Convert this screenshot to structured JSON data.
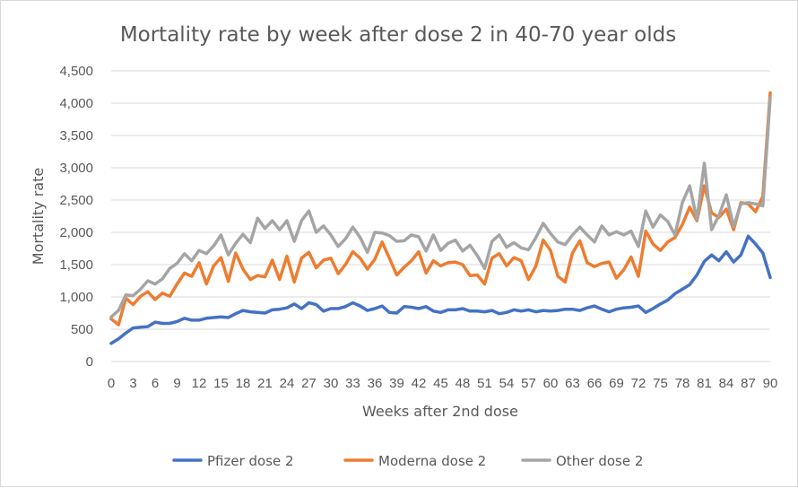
{
  "chart_data": {
    "type": "line",
    "title": "Mortality rate by week after dose 2 in 40-70 year olds",
    "xlabel": "Weeks after 2nd dose",
    "ylabel": "Mortality rate",
    "x": [
      0,
      1,
      2,
      3,
      4,
      5,
      6,
      7,
      8,
      9,
      10,
      11,
      12,
      13,
      14,
      15,
      16,
      17,
      18,
      19,
      20,
      21,
      22,
      23,
      24,
      25,
      26,
      27,
      28,
      29,
      30,
      31,
      32,
      33,
      34,
      35,
      36,
      37,
      38,
      39,
      40,
      41,
      42,
      43,
      44,
      45,
      46,
      47,
      48,
      49,
      50,
      51,
      52,
      53,
      54,
      55,
      56,
      57,
      58,
      59,
      60,
      61,
      62,
      63,
      64,
      65,
      66,
      67,
      68,
      69,
      70,
      71,
      72,
      73,
      74,
      75,
      76,
      77,
      78,
      79,
      80,
      81,
      82,
      83,
      84,
      85,
      86,
      87,
      88,
      89,
      90
    ],
    "xlim": [
      0,
      90
    ],
    "ylim": [
      0,
      4500
    ],
    "x_ticks": [
      "0",
      "3",
      "6",
      "9",
      "12",
      "15",
      "18",
      "21",
      "24",
      "27",
      "30",
      "33",
      "36",
      "39",
      "42",
      "45",
      "48",
      "51",
      "54",
      "57",
      "60",
      "63",
      "66",
      "69",
      "72",
      "75",
      "78",
      "81",
      "84",
      "87",
      "90"
    ],
    "y_ticks": [
      "0",
      "500",
      "1,000",
      "1,500",
      "2,000",
      "2,500",
      "3,000",
      "3,500",
      "4,000",
      "4,500"
    ],
    "grid": "horizontal",
    "legend_position": "bottom",
    "series": [
      {
        "name": "Pfizer dose 2",
        "color": "#4472c4",
        "values": [
          280,
          350,
          440,
          520,
          530,
          540,
          610,
          590,
          590,
          620,
          670,
          640,
          640,
          670,
          680,
          690,
          680,
          740,
          790,
          770,
          760,
          750,
          800,
          810,
          830,
          890,
          820,
          910,
          880,
          780,
          820,
          820,
          850,
          910,
          860,
          790,
          820,
          860,
          760,
          750,
          850,
          840,
          820,
          850,
          780,
          760,
          800,
          800,
          820,
          780,
          780,
          770,
          790,
          740,
          760,
          800,
          780,
          800,
          770,
          790,
          780,
          790,
          810,
          810,
          790,
          830,
          860,
          810,
          770,
          810,
          830,
          840,
          860,
          760,
          820,
          890,
          950,
          1050,
          1120,
          1190,
          1340,
          1550,
          1650,
          1560,
          1700,
          1540,
          1650,
          1940,
          1820,
          1680,
          1300
        ]
      },
      {
        "name": "Moderna dose 2",
        "color": "#ed7d31",
        "values": [
          660,
          570,
          980,
          880,
          1010,
          1080,
          960,
          1060,
          1010,
          1200,
          1370,
          1320,
          1530,
          1200,
          1480,
          1610,
          1240,
          1680,
          1430,
          1270,
          1330,
          1310,
          1570,
          1270,
          1630,
          1230,
          1600,
          1690,
          1450,
          1570,
          1600,
          1360,
          1500,
          1700,
          1600,
          1430,
          1580,
          1850,
          1600,
          1340,
          1460,
          1560,
          1700,
          1370,
          1560,
          1480,
          1530,
          1540,
          1500,
          1330,
          1340,
          1200,
          1600,
          1670,
          1480,
          1610,
          1560,
          1270,
          1480,
          1880,
          1720,
          1320,
          1230,
          1680,
          1870,
          1530,
          1470,
          1520,
          1540,
          1290,
          1420,
          1620,
          1320,
          2020,
          1820,
          1720,
          1850,
          1920,
          2120,
          2390,
          2180,
          2720,
          2300,
          2230,
          2360,
          2040,
          2460,
          2440,
          2320,
          2560,
          4160
        ]
      },
      {
        "name": "Other dose 2",
        "color": "#a5a5a5",
        "values": [
          690,
          790,
          1030,
          1020,
          1120,
          1250,
          1200,
          1280,
          1440,
          1520,
          1670,
          1560,
          1720,
          1670,
          1790,
          1960,
          1650,
          1830,
          1970,
          1840,
          2220,
          2060,
          2180,
          2040,
          2180,
          1860,
          2180,
          2330,
          2000,
          2100,
          1960,
          1780,
          1900,
          2080,
          1920,
          1690,
          2000,
          1990,
          1950,
          1860,
          1870,
          1960,
          1930,
          1710,
          1960,
          1720,
          1830,
          1880,
          1710,
          1800,
          1640,
          1440,
          1860,
          1960,
          1770,
          1840,
          1760,
          1730,
          1920,
          2140,
          1980,
          1850,
          1810,
          1960,
          2080,
          1960,
          1850,
          2100,
          1960,
          2010,
          1960,
          2020,
          1780,
          2330,
          2080,
          2270,
          2170,
          1960,
          2460,
          2720,
          2200,
          3070,
          2040,
          2260,
          2580,
          2090,
          2440,
          2460,
          2440,
          2410,
          4080
        ]
      }
    ]
  }
}
